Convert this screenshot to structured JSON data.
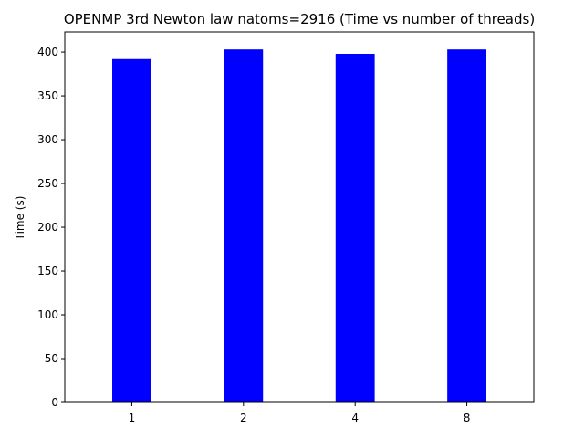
{
  "chart_data": {
    "type": "bar",
    "title": "OPENMP 3rd Newton law natoms=2916 (Time vs number of threads)",
    "xlabel": "",
    "ylabel": "Time (s)",
    "categories": [
      "1",
      "2",
      "4",
      "8"
    ],
    "values": [
      392,
      403,
      398,
      403
    ],
    "ylim": [
      0,
      423
    ],
    "yticks": [
      0,
      50,
      100,
      150,
      200,
      250,
      300,
      350,
      400
    ],
    "grid": false,
    "bar_color": "#0000ff"
  }
}
